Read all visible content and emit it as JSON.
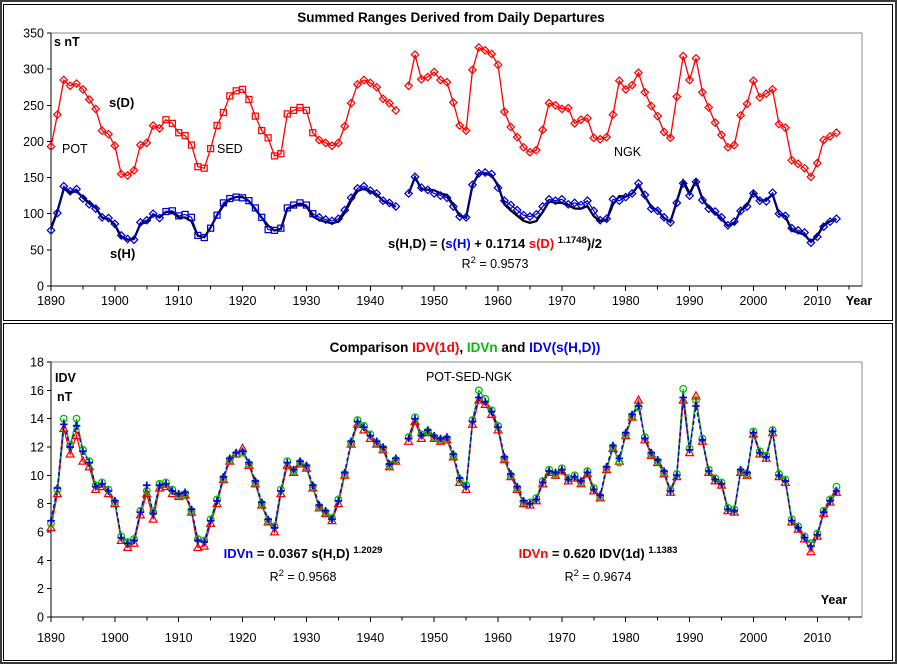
{
  "chart_data": [
    {
      "type": "line",
      "panel": "top",
      "title": "Summed Ranges Derived from Daily Departures",
      "xlabel": "Year",
      "ylabel": "s nT",
      "ylim": [
        0,
        350
      ],
      "ytick_step": 50,
      "xlim": [
        1890,
        2017
      ],
      "xtick_major": 10,
      "xtick_minor": 5,
      "xtick_label_start": 1890,
      "xtick_label_end": 2010,
      "grid": false,
      "legend": "inline text labels",
      "x_start_year": 1890,
      "gap_years": [
        1945
      ],
      "segments": [
        {
          "label": "POT",
          "start": 1890,
          "end": 1907,
          "marker": "diamond"
        },
        {
          "label": "SED",
          "start": 1908,
          "end": 1931,
          "marker": "square"
        },
        {
          "label": "NGK",
          "start": 1932,
          "end": 2013,
          "marker": "diamond"
        }
      ],
      "labels": {
        "y_unit": "s nT",
        "sD": "s(D)",
        "sH": "s(H)",
        "year": "Year"
      },
      "equation": {
        "parts": [
          {
            "t": "s(H,D) = (",
            "c": "#000000"
          },
          {
            "t": "s(H)",
            "c": "#0000FF"
          },
          {
            "t": " + 0.1714 ",
            "c": "#000000"
          },
          {
            "t": "s(D)",
            "c": "#FF0000"
          },
          {
            "t": " ",
            "c": "#000000"
          },
          {
            "t": "1.1748",
            "c": "#000000",
            "sup": true
          },
          {
            "t": ")/2",
            "c": "#000000"
          }
        ]
      },
      "r2": {
        "parts": [
          {
            "t": "R",
            "c": "#000000"
          },
          {
            "t": "2",
            "c": "#000000",
            "sup": true
          },
          {
            "t": " = 0.9573",
            "c": "#000000"
          }
        ]
      },
      "series": [
        {
          "name": "s(D)",
          "color": "#FF0000",
          "marker_scheme": "by-segment",
          "values": [
            193,
            237,
            285,
            277,
            280,
            272,
            258,
            245,
            215,
            210,
            194,
            155,
            153,
            160,
            195,
            198,
            222,
            218,
            230,
            225,
            212,
            208,
            195,
            165,
            163,
            190,
            222,
            240,
            263,
            270,
            272,
            258,
            235,
            215,
            205,
            180,
            183,
            238,
            243,
            247,
            243,
            212,
            202,
            198,
            194,
            198,
            221,
            253,
            279,
            285,
            281,
            275,
            259,
            253,
            243,
            null,
            277,
            320,
            286,
            289,
            296,
            285,
            282,
            254,
            222,
            215,
            299,
            330,
            326,
            321,
            306,
            241,
            220,
            206,
            192,
            185,
            188,
            216,
            253,
            250,
            245,
            246,
            225,
            230,
            232,
            205,
            203,
            206,
            237,
            284,
            272,
            278,
            295,
            268,
            249,
            235,
            213,
            205,
            262,
            318,
            285,
            315,
            268,
            247,
            226,
            209,
            192,
            195,
            236,
            252,
            284,
            261,
            266,
            272,
            224,
            219,
            174,
            169,
            163,
            151,
            170,
            202,
            207,
            212
          ]
        },
        {
          "name": "s(H)",
          "color": "#0000CC",
          "marker_scheme": "by-segment",
          "values": [
            77,
            101,
            138,
            131,
            134,
            121,
            113,
            107,
            95,
            94,
            86,
            70,
            65,
            64,
            88,
            91,
            100,
            94,
            103,
            104,
            97,
            99,
            95,
            70,
            67,
            80,
            98,
            115,
            121,
            123,
            122,
            118,
            108,
            95,
            78,
            77,
            80,
            108,
            112,
            115,
            112,
            100,
            95,
            92,
            90,
            93,
            105,
            122,
            135,
            138,
            132,
            128,
            118,
            115,
            110,
            null,
            128,
            151,
            136,
            133,
            128,
            125,
            122,
            110,
            96,
            95,
            140,
            156,
            157,
            155,
            136,
            118,
            112,
            105,
            98,
            96,
            99,
            110,
            120,
            118,
            120,
            113,
            115,
            112,
            118,
            104,
            91,
            93,
            120,
            118,
            123,
            128,
            142,
            126,
            107,
            104,
            95,
            88,
            115,
            142,
            125,
            144,
            119,
            107,
            103,
            95,
            84,
            89,
            104,
            110,
            128,
            118,
            117,
            129,
            100,
            97,
            80,
            77,
            74,
            60,
            68,
            82,
            89,
            93
          ]
        },
        {
          "name": "s(H,D)",
          "color": "#000000",
          "marker_scheme": "none",
          "derived_from_formula": "(s(H) + 0.1714 s(D)^1.1748)/2"
        }
      ]
    },
    {
      "type": "line",
      "panel": "bottom",
      "title_parts": [
        {
          "t": "Comparison ",
          "c": "#000000"
        },
        {
          "t": "IDV(1d)",
          "c": "#FF0000"
        },
        {
          "t": ", ",
          "c": "#000000"
        },
        {
          "t": "IDVn",
          "c": "#00BB00"
        },
        {
          "t": " and ",
          "c": "#000000"
        },
        {
          "t": "IDV(s(H,D))",
          "c": "#0000FF"
        }
      ],
      "xlabel": "Year",
      "ylabel": "IDV nT",
      "ylim": [
        0,
        18
      ],
      "ytick_step": 2,
      "xlim": [
        1890,
        2017
      ],
      "xtick_major": 10,
      "xtick_minor": 5,
      "xtick_label_start": 1890,
      "xtick_label_end": 2010,
      "grid": false,
      "x_start_year": 1890,
      "gap_years": [
        1945
      ],
      "labels": {
        "y_line1": "IDV",
        "y_line2": "nT",
        "stations": "POT-SED-NGK",
        "year": "Year"
      },
      "eq_left": {
        "parts": [
          {
            "t": "IDVn",
            "c": "#0000FF"
          },
          {
            "t": " = 0.0367 s(H,D)",
            "c": "#000000"
          },
          {
            "t": " ",
            "c": "#000000"
          },
          {
            "t": "1.2029",
            "c": "#000000",
            "sup": true
          }
        ]
      },
      "eq_left_r2": {
        "parts": [
          {
            "t": "R",
            "c": "#000000"
          },
          {
            "t": "2",
            "c": "#000000",
            "sup": true
          },
          {
            "t": " = 0.9568",
            "c": "#000000"
          }
        ]
      },
      "eq_right": {
        "parts": [
          {
            "t": "IDVn",
            "c": "#FF0000"
          },
          {
            "t": " = 0.620 IDV(1d)",
            "c": "#000000"
          },
          {
            "t": " ",
            "c": "#000000"
          },
          {
            "t": "1.1383",
            "c": "#000000",
            "sup": true
          }
        ]
      },
      "eq_right_r2": {
        "parts": [
          {
            "t": "R",
            "c": "#000000"
          },
          {
            "t": "2",
            "c": "#000000",
            "sup": true
          },
          {
            "t": " = 0.9674",
            "c": "#000000"
          }
        ]
      },
      "series": [
        {
          "name": "IDV(1d)",
          "color": "#FF0000",
          "marker": "triangle",
          "line": "solid",
          "values": [
            6.3,
            8.7,
            13.3,
            11.5,
            12.8,
            11.0,
            10.6,
            9.0,
            9.2,
            8.7,
            8.0,
            5.4,
            4.9,
            5.2,
            7.2,
            8.7,
            6.9,
            9.1,
            9.2,
            8.7,
            8.5,
            8.6,
            7.4,
            4.9,
            5.0,
            6.6,
            8.0,
            9.7,
            11.0,
            11.5,
            11.9,
            10.7,
            9.4,
            7.9,
            6.7,
            6.0,
            8.7,
            10.7,
            10.2,
            10.8,
            10.5,
            9.1,
            7.7,
            7.3,
            6.8,
            8.0,
            10.0,
            12.2,
            13.6,
            13.2,
            12.6,
            12.2,
            11.8,
            10.6,
            11.0,
            null,
            12.4,
            13.8,
            12.6,
            13.0,
            12.6,
            12.4,
            12.5,
            11.3,
            9.5,
            9.0,
            13.6,
            15.3,
            15.0,
            14.3,
            13.2,
            11.1,
            9.9,
            9.0,
            8.0,
            7.9,
            8.2,
            9.4,
            10.2,
            10.0,
            10.3,
            9.6,
            9.8,
            9.4,
            10.1,
            8.9,
            8.4,
            10.4,
            11.9,
            11.0,
            12.8,
            14.1,
            15.3,
            12.5,
            11.4,
            10.9,
            10.1,
            8.8,
            9.9,
            15.3,
            11.6,
            15.6,
            12.4,
            10.2,
            9.6,
            9.3,
            7.5,
            7.4,
            10.2,
            10.0,
            12.9,
            11.5,
            11.2,
            13.0,
            9.9,
            9.5,
            6.7,
            6.2,
            5.5,
            4.6,
            5.7,
            7.3,
            8.1,
            8.8
          ]
        },
        {
          "name": "IDVn",
          "color": "#00BB00",
          "marker": "circle",
          "line": "solid",
          "values": [
            6.6,
            9.0,
            14.0,
            12.1,
            14.0,
            11.8,
            11.0,
            9.3,
            9.5,
            9.0,
            8.1,
            5.7,
            5.3,
            5.5,
            7.5,
            8.9,
            7.4,
            9.4,
            9.5,
            9.0,
            8.6,
            8.7,
            7.5,
            5.5,
            5.4,
            6.9,
            8.3,
            9.8,
            11.1,
            11.5,
            11.6,
            10.8,
            9.5,
            8.0,
            6.8,
            6.4,
            9.0,
            11.0,
            10.3,
            10.9,
            10.6,
            9.2,
            7.8,
            7.4,
            7.0,
            8.3,
            10.1,
            12.3,
            13.9,
            13.5,
            12.9,
            12.3,
            11.9,
            10.7,
            11.1,
            null,
            12.7,
            14.1,
            12.9,
            13.1,
            12.7,
            12.5,
            12.6,
            11.4,
            9.7,
            9.3,
            13.9,
            16.0,
            15.4,
            14.6,
            13.5,
            11.2,
            10.0,
            9.1,
            8.1,
            8.1,
            8.4,
            9.6,
            10.4,
            10.1,
            10.5,
            9.8,
            10.0,
            9.5,
            10.3,
            9.1,
            8.5,
            10.5,
            12.0,
            10.9,
            12.9,
            14.2,
            14.8,
            12.7,
            11.5,
            11.0,
            10.2,
            9.0,
            10.1,
            16.1,
            11.9,
            15.3,
            12.6,
            10.4,
            9.8,
            9.5,
            7.7,
            7.6,
            10.3,
            10.1,
            13.1,
            11.7,
            11.4,
            13.2,
            10.1,
            9.7,
            6.9,
            6.4,
            5.7,
            5.2,
            5.9,
            7.5,
            8.3,
            9.2
          ]
        },
        {
          "name": "IDV(s(H,D))",
          "color": "#0000EE",
          "marker": "plus",
          "line": "dashed",
          "values": [
            6.8,
            9.1,
            13.6,
            12.0,
            13.5,
            11.7,
            10.9,
            9.2,
            9.4,
            8.9,
            8.2,
            5.6,
            5.2,
            5.4,
            7.4,
            9.3,
            7.3,
            9.3,
            9.4,
            8.9,
            8.7,
            8.8,
            7.6,
            5.4,
            5.3,
            6.8,
            8.2,
            9.9,
            11.2,
            11.6,
            11.7,
            10.9,
            9.6,
            8.1,
            6.9,
            6.3,
            8.9,
            10.9,
            10.4,
            11.0,
            10.7,
            9.3,
            7.9,
            7.5,
            6.9,
            8.2,
            10.2,
            12.4,
            13.8,
            13.4,
            12.8,
            12.4,
            12.0,
            10.8,
            11.2,
            null,
            12.6,
            14.0,
            12.8,
            13.2,
            12.8,
            12.6,
            12.7,
            11.5,
            9.8,
            9.2,
            13.8,
            15.5,
            15.2,
            14.5,
            13.4,
            11.3,
            10.1,
            9.2,
            8.2,
            8.0,
            8.3,
            9.5,
            10.3,
            10.2,
            10.4,
            9.7,
            9.9,
            9.6,
            10.2,
            9.0,
            8.6,
            10.6,
            12.1,
            11.2,
            13.0,
            14.3,
            14.9,
            12.6,
            11.6,
            11.1,
            10.3,
            8.9,
            10.0,
            15.5,
            11.8,
            14.9,
            12.5,
            10.3,
            9.7,
            9.4,
            7.6,
            7.5,
            10.4,
            10.2,
            13.0,
            11.6,
            11.3,
            13.1,
            10.0,
            9.6,
            6.8,
            6.3,
            5.6,
            5.0,
            5.8,
            7.4,
            8.2,
            8.9
          ]
        }
      ]
    }
  ]
}
